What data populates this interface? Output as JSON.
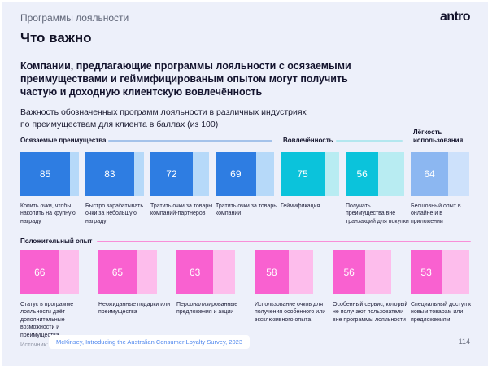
{
  "header": {
    "kicker": "Программы лояльности",
    "logo": "antro"
  },
  "title": "Что важно",
  "lead": "Компании, предлагающие программы лояльности с осязаемыми\nпреимуществами и геймифицированым опытом могут получить\nчастую и доходную клиентскую вовлечённость",
  "subtitle": "Важность обозначенных программ лояльности в различных индустриях\nпо преимуществам для клиента в баллах (из 100)",
  "chart_data": {
    "type": "bar",
    "title": "Важность обозначенных программ лояльности в различных индустриях по преимуществам для клиента в баллах (из 100)",
    "max_value": 100,
    "groups": [
      {
        "name": "Осязаемые преимущества",
        "color": "#2e7de2",
        "track_color": "#b6d9f9",
        "line_color": "#a4c2ea",
        "items": [
          {
            "label": "Копить очки, чтобы накопить на крупную награду",
            "value": 85
          },
          {
            "label": "Быстро зарабатывать очки за небольшую награду",
            "value": 83
          },
          {
            "label": "Тратить очки за товары компаний-партнёров",
            "value": 72
          },
          {
            "label": "Тратить очки за товары компании",
            "value": 69
          }
        ]
      },
      {
        "name": "Вовлечённость",
        "color": "#0bc3db",
        "track_color": "#b8ecf2",
        "line_color": "#b3e7ef",
        "items": [
          {
            "label": "Геймификация",
            "value": 75
          },
          {
            "label": "Получать преимущества вне транзакций для покупки",
            "value": 56
          }
        ]
      },
      {
        "name": "Лёгкость использования",
        "color": "#8cb7f1",
        "track_color": "#cde1fb",
        "line_color": "",
        "items": [
          {
            "label": "Бесшовный опыт в онлайне и в приложении",
            "value": 64
          }
        ]
      },
      {
        "name": "Положительный опыт",
        "color": "#f961d0",
        "track_color": "#fdbdec",
        "line_color": "#f88fd8",
        "items": [
          {
            "label": "Статус в программе лояльности даёт дополнительные возможности и преимущества",
            "value": 66
          },
          {
            "label": "Неожиданные подарки или преимущества",
            "value": 65
          },
          {
            "label": "Персонализированные предложения и акции",
            "value": 63
          },
          {
            "label": "Использование очков для получения особенного или эксклюзивного опыта",
            "value": 58
          },
          {
            "label": "Особенный сервис, который не получают пользователи вне программы лояльности",
            "value": 56
          },
          {
            "label": "Специальный доступ к новым товарам или предложениям",
            "value": 53
          }
        ]
      }
    ]
  },
  "footer": {
    "source_label": "Источник:",
    "source_link": "McKinsey, Introducing the Australian Consumer Loyalty Survey, 2023",
    "page": "114"
  }
}
